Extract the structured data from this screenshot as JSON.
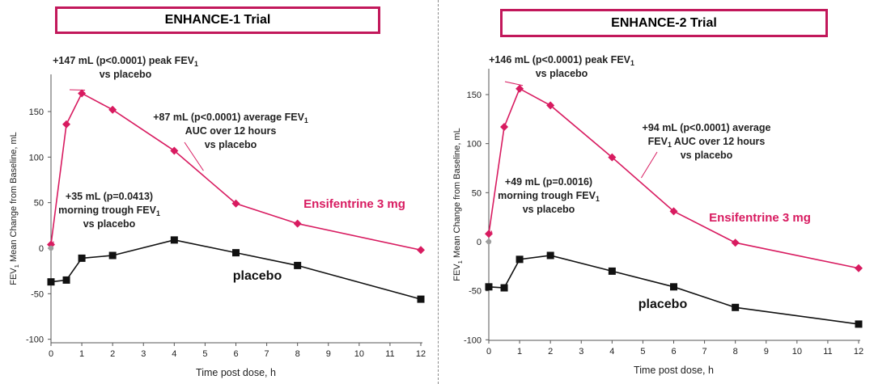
{
  "chart_data": [
    {
      "type": "line",
      "title": "ENHANCE-1 Trial",
      "xlabel": "Time post dose, h",
      "ylabel": "FEV1 Mean Change from Baseline, mL",
      "ylabel_sub": "1",
      "x_ticks": [
        0,
        1,
        2,
        3,
        4,
        5,
        6,
        7,
        8,
        9,
        10,
        11,
        12
      ],
      "y_ticks": [
        -100,
        -50,
        0,
        50,
        100,
        150
      ],
      "xlim": [
        0,
        12
      ],
      "ylim": [
        -100,
        175
      ],
      "baseline_point": {
        "x": 0,
        "y": 0
      },
      "series": [
        {
          "name": "Ensifentrine 3 mg",
          "color": "#d81b60",
          "marker": "diamond",
          "x": [
            0,
            0.5,
            1,
            2,
            4,
            6,
            8,
            12
          ],
          "values": [
            4,
            136,
            170,
            152,
            107,
            49,
            27,
            -2
          ]
        },
        {
          "name": "placebo",
          "color": "#111111",
          "marker": "square",
          "x": [
            0,
            0.5,
            1,
            2,
            4,
            6,
            8,
            12
          ],
          "values": [
            -37,
            -35,
            -11,
            -8,
            9,
            -5,
            -19,
            -56
          ]
        }
      ],
      "annotations": [
        {
          "lines": [
            "+147 mL (p<0.0001) peak FEV",
            "vs placebo"
          ],
          "sub": "1"
        },
        {
          "lines": [
            "+87 mL (p<0.0001) average FEV",
            "AUC over 12 hours",
            "vs placebo"
          ],
          "sub": "1"
        },
        {
          "lines": [
            "+35 mL (p=0.0413)",
            "morning trough FEV",
            "vs placebo"
          ],
          "sub": "1"
        }
      ]
    },
    {
      "type": "line",
      "title": "ENHANCE-2 Trial",
      "xlabel": "Time post dose, h",
      "ylabel": "FEV1 Mean Change from Baseline, mL",
      "ylabel_sub": "1",
      "x_ticks": [
        0,
        1,
        2,
        3,
        4,
        5,
        6,
        7,
        8,
        9,
        10,
        11,
        12
      ],
      "y_ticks": [
        -100,
        -50,
        0,
        50,
        100,
        150
      ],
      "xlim": [
        0,
        12
      ],
      "ylim": [
        -100,
        175
      ],
      "baseline_point": {
        "x": 0,
        "y": 0
      },
      "series": [
        {
          "name": "Ensifentrine 3 mg",
          "color": "#d81b60",
          "marker": "diamond",
          "x": [
            0,
            0.5,
            1,
            2,
            4,
            6,
            8,
            12
          ],
          "values": [
            8,
            117,
            156,
            139,
            86,
            31,
            -1,
            -27
          ]
        },
        {
          "name": "placebo",
          "color": "#111111",
          "marker": "square",
          "x": [
            0,
            0.5,
            1,
            2,
            4,
            6,
            8,
            12
          ],
          "values": [
            -46,
            -47,
            -18,
            -14,
            -30,
            -46,
            -67,
            -84
          ]
        }
      ],
      "annotations": [
        {
          "lines": [
            "+146 mL (p<0.0001) peak FEV",
            "vs placebo"
          ],
          "sub": "1"
        },
        {
          "lines": [
            "+94 mL (p<0.0001) average",
            "FEV AUC over 12 hours",
            "vs placebo"
          ],
          "sub": "1"
        },
        {
          "lines": [
            "+49 mL (p=0.0016)",
            "morning trough FEV",
            "vs placebo"
          ],
          "sub": "1"
        }
      ]
    }
  ]
}
